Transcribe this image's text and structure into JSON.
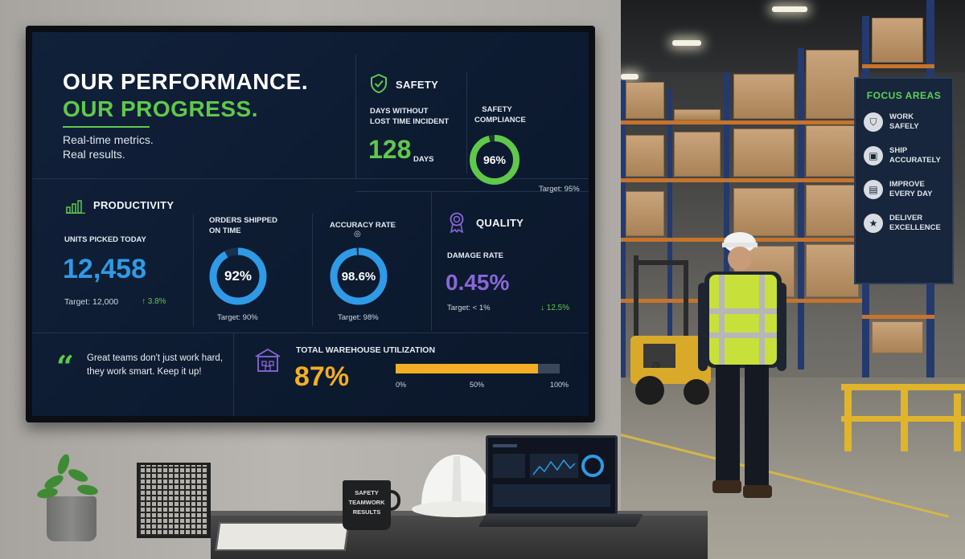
{
  "hero": {
    "line1": "OUR PERFORMANCE.",
    "line2": "OUR PROGRESS.",
    "subtitle_line1": "Real-time metrics.",
    "subtitle_line2": "Real results."
  },
  "safety": {
    "title": "SAFETY",
    "days_label_line1": "DAYS WITHOUT",
    "days_label_line2": "LOST TIME INCIDENT",
    "days_value": "128",
    "days_unit": "DAYS",
    "compliance_label_line1": "SAFETY",
    "compliance_label_line2": "COMPLIANCE",
    "compliance_value": "96%",
    "compliance_fraction": 0.96,
    "compliance_target": "Target: 95%"
  },
  "productivity": {
    "title": "PRODUCTIVITY",
    "units_label": "UNITS PICKED TODAY",
    "units_value": "12,458",
    "units_target": "Target: 12,000",
    "units_change": "↑ 3.8%",
    "orders_label_line1": "ORDERS SHIPPED",
    "orders_label_line2": "ON TIME",
    "orders_value": "92%",
    "orders_fraction": 0.92,
    "orders_target": "Target: 90%",
    "accuracy_label": "ACCURACY RATE",
    "accuracy_value": "98.6%",
    "accuracy_fraction": 0.986,
    "accuracy_target": "Target: 98%"
  },
  "quality": {
    "title": "QUALITY",
    "damage_label": "DAMAGE RATE",
    "damage_value": "0.45%",
    "damage_target": "Target: < 1%",
    "damage_change": "↓ 12.5%"
  },
  "quote": {
    "text": "Great teams don't just work hard, they work smart. Keep it up!"
  },
  "utilization": {
    "title": "TOTAL WAREHOUSE UTILIZATION",
    "value": "87%",
    "fraction": 0.87,
    "tick_0": "0%",
    "tick_50": "50%",
    "tick_100": "100%"
  },
  "focus_areas": {
    "title": "FOCUS AREAS",
    "items": [
      {
        "line1": "WORK",
        "line2": "SAFELY",
        "icon": "shield-icon"
      },
      {
        "line1": "SHIP",
        "line2": "ACCURATELY",
        "icon": "box-icon"
      },
      {
        "line1": "IMPROVE",
        "line2": "EVERY DAY",
        "icon": "chart-icon"
      },
      {
        "line1": "DELIVER",
        "line2": "EXCELLENCE",
        "icon": "star-icon"
      }
    ]
  },
  "mug": {
    "line1": "SAFETY",
    "line2": "TEAMWORK",
    "line3": "RESULTS"
  },
  "colors": {
    "accent_green": "#5fc94b",
    "accent_blue": "#2f9ae6",
    "accent_purple": "#8a67d8",
    "accent_yellow": "#f3ae25",
    "screen_bg": "#0d1b31"
  }
}
